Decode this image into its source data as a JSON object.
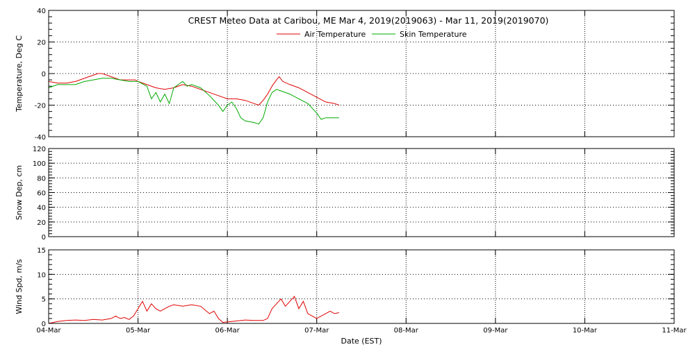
{
  "chart_data": {
    "title": "CREST Meteo Data at Caribou, ME   Mar  4, 2019(2019063) - Mar 11, 2019(2019070)",
    "xlabel": "Date (EST)",
    "x_tick_labels": [
      "04-Mar",
      "05-Mar",
      "06-Mar",
      "07-Mar",
      "08-Mar",
      "09-Mar",
      "10-Mar",
      "11-Mar"
    ],
    "xlim": [
      0,
      7
    ],
    "grid": true,
    "legend_position": "top",
    "charts": [
      {
        "type": "line",
        "ylabel": "Temperature, Deg C",
        "ylim": [
          -40,
          40
        ],
        "y_ticks": [
          -40,
          -20,
          0,
          20,
          40
        ],
        "series": [
          {
            "name": "Air Temperature",
            "color": "#e00000",
            "x": [
              0,
              0.1,
              0.2,
              0.3,
              0.35,
              0.45,
              0.55,
              0.6,
              0.7,
              0.8,
              0.9,
              0.97,
              1.0,
              1.1,
              1.2,
              1.3,
              1.4,
              1.5,
              1.6,
              1.7,
              1.8,
              1.9,
              2.0,
              2.1,
              2.2,
              2.3,
              2.35,
              2.4,
              2.45,
              2.5,
              2.55,
              2.58,
              2.62,
              2.7,
              2.8,
              2.9,
              3.0,
              3.1,
              3.2,
              3.25
            ],
            "y": [
              -5,
              -6,
              -6,
              -5,
              -4,
              -2,
              0,
              0,
              -2,
              -4,
              -4,
              -4,
              -5,
              -7,
              -9,
              -10,
              -9,
              -7,
              -8,
              -10,
              -12,
              -14,
              -16,
              -16,
              -17,
              -19,
              -20,
              -17,
              -13,
              -8,
              -4,
              -2,
              -5,
              -7,
              -9,
              -12,
              -15,
              -18,
              -19,
              -20
            ]
          },
          {
            "name": "Skin Temperature",
            "color": "#00aa00",
            "x": [
              0,
              0.1,
              0.3,
              0.4,
              0.5,
              0.6,
              0.7,
              0.8,
              0.9,
              1.0,
              1.1,
              1.15,
              1.2,
              1.25,
              1.3,
              1.35,
              1.4,
              1.45,
              1.5,
              1.55,
              1.6,
              1.7,
              1.8,
              1.9,
              1.95,
              2.0,
              2.05,
              2.1,
              2.15,
              2.2,
              2.3,
              2.35,
              2.4,
              2.45,
              2.5,
              2.55,
              2.6,
              2.7,
              2.8,
              2.9,
              3.0,
              3.05,
              3.1,
              3.2,
              3.25
            ],
            "y": [
              -9,
              -7,
              -7,
              -5,
              -4,
              -3,
              -3,
              -4,
              -5,
              -5,
              -8,
              -16,
              -12,
              -18,
              -13,
              -19,
              -9,
              -7,
              -5,
              -8,
              -7,
              -9,
              -14,
              -20,
              -24,
              -20,
              -18,
              -22,
              -28,
              -30,
              -31,
              -32,
              -28,
              -18,
              -12,
              -10,
              -11,
              -13,
              -16,
              -19,
              -25,
              -29,
              -28,
              -28,
              -28
            ]
          }
        ]
      },
      {
        "type": "line",
        "ylabel": "Snow Dep, cm",
        "ylim": [
          0,
          120
        ],
        "y_ticks": [
          0,
          20,
          40,
          60,
          80,
          100,
          120
        ],
        "series": []
      },
      {
        "type": "line",
        "ylabel": "Wind Spd, m/s",
        "ylim": [
          0,
          15
        ],
        "y_ticks": [
          0,
          5,
          10,
          15
        ],
        "series": [
          {
            "color": "#e00000",
            "x": [
              0,
              0.05,
              0.1,
              0.2,
              0.3,
              0.4,
              0.5,
              0.6,
              0.7,
              0.75,
              0.8,
              0.85,
              0.9,
              0.95,
              1.0,
              1.05,
              1.1,
              1.15,
              1.2,
              1.25,
              1.3,
              1.35,
              1.4,
              1.5,
              1.6,
              1.7,
              1.8,
              1.85,
              1.9,
              1.95,
              2.0,
              2.1,
              2.2,
              2.3,
              2.4,
              2.45,
              2.5,
              2.55,
              2.6,
              2.65,
              2.7,
              2.75,
              2.8,
              2.85,
              2.9,
              2.95,
              3.0,
              3.05,
              3.1,
              3.15,
              3.2,
              3.25
            ],
            "y": [
              0,
              0.2,
              0.4,
              0.6,
              0.7,
              0.6,
              0.8,
              0.7,
              1.0,
              1.5,
              1.0,
              1.2,
              0.8,
              1.5,
              3.0,
              4.5,
              2.5,
              4.0,
              3.0,
              2.5,
              3.0,
              3.5,
              3.8,
              3.5,
              3.8,
              3.5,
              2.0,
              2.5,
              1.0,
              0.2,
              0.3,
              0.5,
              0.7,
              0.6,
              0.6,
              1.0,
              3.0,
              4.0,
              5.0,
              3.5,
              4.5,
              5.5,
              3.0,
              4.5,
              2.0,
              1.5,
              1.0,
              1.5,
              2.0,
              2.5,
              2.0,
              2.2
            ]
          }
        ]
      }
    ]
  }
}
